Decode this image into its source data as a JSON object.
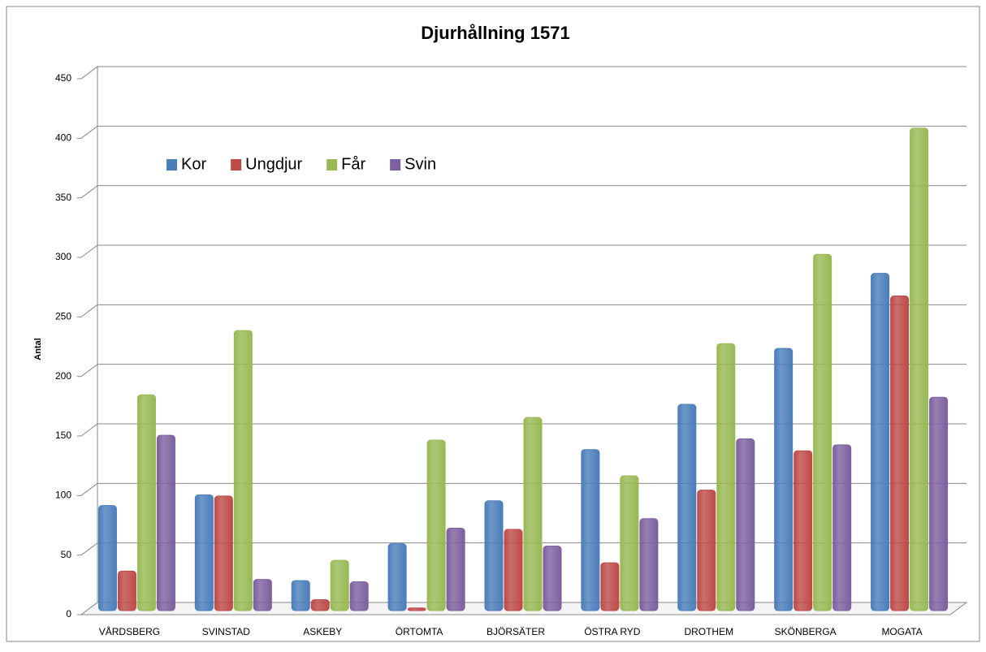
{
  "chart_data": {
    "type": "bar",
    "title": "Djurhållning 1571",
    "ylabel": "Antal",
    "categories": [
      "VÅRDSBERG",
      "SVINSTAD",
      "ASKEBY",
      "ÖRTOMTA",
      "BJÖRSÄTER",
      "ÖSTRA RYD",
      "DROTHEM",
      "SKÖNBERGA",
      "MOGATA"
    ],
    "series": [
      {
        "name": "Kor",
        "color": "#4a7ebb",
        "values": [
          95,
          104,
          32,
          63,
          99,
          142,
          180,
          227,
          290
        ]
      },
      {
        "name": "Ungdjur",
        "color": "#be4b48",
        "values": [
          40,
          103,
          16,
          9,
          75,
          47,
          108,
          141,
          271
        ]
      },
      {
        "name": "Får",
        "color": "#98b954",
        "values": [
          188,
          242,
          49,
          150,
          169,
          120,
          231,
          306,
          412
        ]
      },
      {
        "name": "Svin",
        "color": "#7d60a0",
        "values": [
          154,
          33,
          31,
          76,
          61,
          84,
          151,
          146,
          186
        ]
      }
    ],
    "ylim": [
      0,
      450
    ],
    "yticks": [
      0,
      50,
      100,
      150,
      200,
      250,
      300,
      350,
      400,
      450
    ],
    "grid": true,
    "legend": "top-left"
  }
}
